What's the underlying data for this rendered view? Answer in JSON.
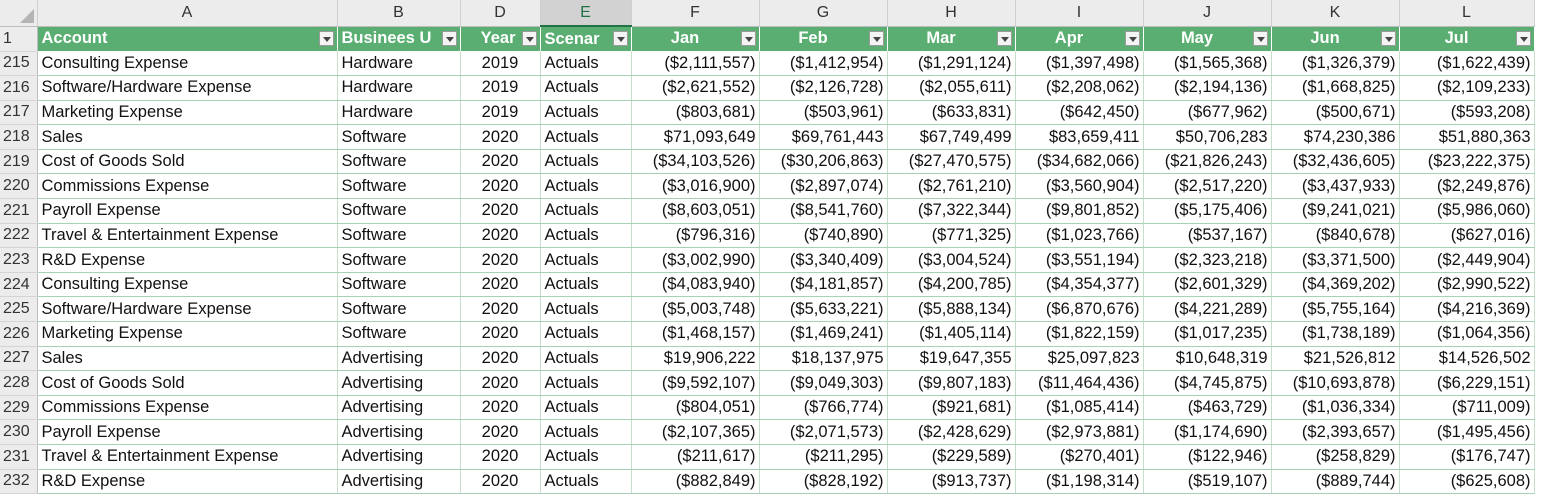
{
  "column_letters": [
    "A",
    "B",
    "D",
    "E",
    "F",
    "G",
    "H",
    "I",
    "J",
    "K",
    "L"
  ],
  "selected_column": "E",
  "header_row_number": "1",
  "field_headers": [
    "Account",
    "Businees U",
    "Year",
    "Scenar",
    "Jan",
    "Feb",
    "Mar",
    "Apr",
    "May",
    "Jun",
    "Jul"
  ],
  "rows": [
    {
      "num": "215",
      "cells": [
        "Consulting Expense",
        "Hardware",
        "2019",
        "Actuals",
        "($2,111,557)",
        "($1,412,954)",
        "($1,291,124)",
        "($1,397,498)",
        "($1,565,368)",
        "($1,326,379)",
        "($1,622,439)"
      ]
    },
    {
      "num": "216",
      "cells": [
        "Software/Hardware Expense",
        "Hardware",
        "2019",
        "Actuals",
        "($2,621,552)",
        "($2,126,728)",
        "($2,055,611)",
        "($2,208,062)",
        "($2,194,136)",
        "($1,668,825)",
        "($2,109,233)"
      ]
    },
    {
      "num": "217",
      "cells": [
        "Marketing Expense",
        "Hardware",
        "2019",
        "Actuals",
        "($803,681)",
        "($503,961)",
        "($633,831)",
        "($642,450)",
        "($677,962)",
        "($500,671)",
        "($593,208)"
      ]
    },
    {
      "num": "218",
      "cells": [
        "Sales",
        "Software",
        "2020",
        "Actuals",
        "$71,093,649",
        "$69,761,443",
        "$67,749,499",
        "$83,659,411",
        "$50,706,283",
        "$74,230,386",
        "$51,880,363"
      ]
    },
    {
      "num": "219",
      "cells": [
        "Cost of Goods Sold",
        "Software",
        "2020",
        "Actuals",
        "($34,103,526)",
        "($30,206,863)",
        "($27,470,575)",
        "($34,682,066)",
        "($21,826,243)",
        "($32,436,605)",
        "($23,222,375)"
      ]
    },
    {
      "num": "220",
      "cells": [
        "Commissions Expense",
        "Software",
        "2020",
        "Actuals",
        "($3,016,900)",
        "($2,897,074)",
        "($2,761,210)",
        "($3,560,904)",
        "($2,517,220)",
        "($3,437,933)",
        "($2,249,876)"
      ]
    },
    {
      "num": "221",
      "cells": [
        "Payroll Expense",
        "Software",
        "2020",
        "Actuals",
        "($8,603,051)",
        "($8,541,760)",
        "($7,322,344)",
        "($9,801,852)",
        "($5,175,406)",
        "($9,241,021)",
        "($5,986,060)"
      ]
    },
    {
      "num": "222",
      "cells": [
        "Travel & Entertainment Expense",
        "Software",
        "2020",
        "Actuals",
        "($796,316)",
        "($740,890)",
        "($771,325)",
        "($1,023,766)",
        "($537,167)",
        "($840,678)",
        "($627,016)"
      ]
    },
    {
      "num": "223",
      "cells": [
        "R&D Expense",
        "Software",
        "2020",
        "Actuals",
        "($3,002,990)",
        "($3,340,409)",
        "($3,004,524)",
        "($3,551,194)",
        "($2,323,218)",
        "($3,371,500)",
        "($2,449,904)"
      ]
    },
    {
      "num": "224",
      "cells": [
        "Consulting Expense",
        "Software",
        "2020",
        "Actuals",
        "($4,083,940)",
        "($4,181,857)",
        "($4,200,785)",
        "($4,354,377)",
        "($2,601,329)",
        "($4,369,202)",
        "($2,990,522)"
      ]
    },
    {
      "num": "225",
      "cells": [
        "Software/Hardware Expense",
        "Software",
        "2020",
        "Actuals",
        "($5,003,748)",
        "($5,633,221)",
        "($5,888,134)",
        "($6,870,676)",
        "($4,221,289)",
        "($5,755,164)",
        "($4,216,369)"
      ]
    },
    {
      "num": "226",
      "cells": [
        "Marketing Expense",
        "Software",
        "2020",
        "Actuals",
        "($1,468,157)",
        "($1,469,241)",
        "($1,405,114)",
        "($1,822,159)",
        "($1,017,235)",
        "($1,738,189)",
        "($1,064,356)"
      ]
    },
    {
      "num": "227",
      "cells": [
        "Sales",
        "Advertising",
        "2020",
        "Actuals",
        "$19,906,222",
        "$18,137,975",
        "$19,647,355",
        "$25,097,823",
        "$10,648,319",
        "$21,526,812",
        "$14,526,502"
      ]
    },
    {
      "num": "228",
      "cells": [
        "Cost of Goods Sold",
        "Advertising",
        "2020",
        "Actuals",
        "($9,592,107)",
        "($9,049,303)",
        "($9,807,183)",
        "($11,464,436)",
        "($4,745,875)",
        "($10,693,878)",
        "($6,229,151)"
      ]
    },
    {
      "num": "229",
      "cells": [
        "Commissions Expense",
        "Advertising",
        "2020",
        "Actuals",
        "($804,051)",
        "($766,774)",
        "($921,681)",
        "($1,085,414)",
        "($463,729)",
        "($1,036,334)",
        "($711,009)"
      ]
    },
    {
      "num": "230",
      "cells": [
        "Payroll Expense",
        "Advertising",
        "2020",
        "Actuals",
        "($2,107,365)",
        "($2,071,573)",
        "($2,428,629)",
        "($2,973,881)",
        "($1,174,690)",
        "($2,393,657)",
        "($1,495,456)"
      ]
    },
    {
      "num": "231",
      "cells": [
        "Travel & Entertainment Expense",
        "Advertising",
        "2020",
        "Actuals",
        "($211,617)",
        "($211,295)",
        "($229,589)",
        "($270,401)",
        "($122,946)",
        "($258,829)",
        "($176,747)"
      ]
    },
    {
      "num": "232",
      "cells": [
        "R&D Expense",
        "Advertising",
        "2020",
        "Actuals",
        "($882,849)",
        "($828,192)",
        "($913,737)",
        "($1,198,314)",
        "($519,107)",
        "($889,744)",
        "($625,608)"
      ]
    }
  ],
  "colors": {
    "header_green": "#5aae72",
    "selection_green": "#217346",
    "gridline_green": "#a9d2b4"
  }
}
